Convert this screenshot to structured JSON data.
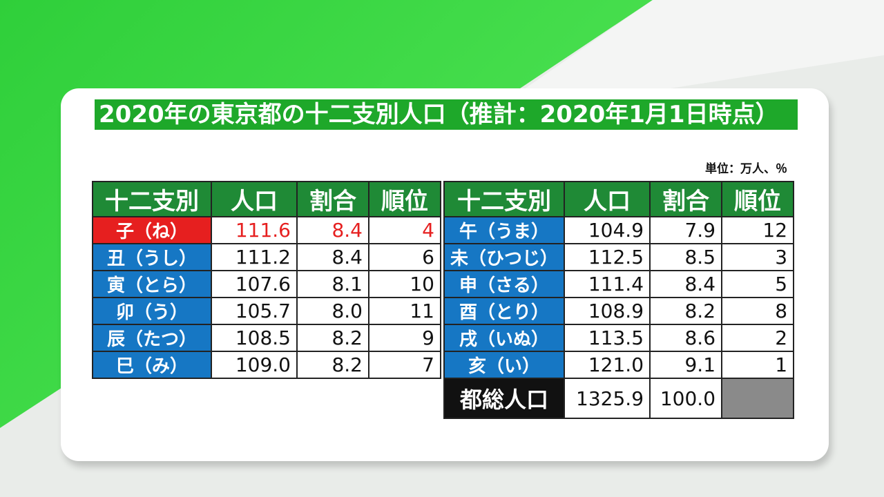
{
  "title": "2020年の東京都の十二支別人口（推計：2020年1月1日時点）",
  "unit": "単位：万人、％",
  "headers": [
    "十二支別",
    "人口",
    "割合",
    "順位"
  ],
  "left_rows": [
    {
      "sign": "子（ね）",
      "pop": "111.6",
      "pct": "8.4",
      "rank": "4"
    },
    {
      "sign": "丑（うし）",
      "pop": "111.2",
      "pct": "8.4",
      "rank": "6"
    },
    {
      "sign": "寅（とら）",
      "pop": "107.6",
      "pct": "8.1",
      "rank": "10"
    },
    {
      "sign": "卯（う）",
      "pop": "105.7",
      "pct": "8.0",
      "rank": "11"
    },
    {
      "sign": "辰（たつ）",
      "pop": "108.5",
      "pct": "8.2",
      "rank": "9"
    },
    {
      "sign": "巳（み）",
      "pop": "109.0",
      "pct": "8.2",
      "rank": "7"
    }
  ],
  "right_rows": [
    {
      "sign": "午（うま）",
      "pop": "104.9",
      "pct": "7.9",
      "rank": "12"
    },
    {
      "sign": "未（ひつじ）",
      "pop": "112.5",
      "pct": "8.5",
      "rank": "3"
    },
    {
      "sign": "申（さる）",
      "pop": "111.4",
      "pct": "8.4",
      "rank": "5"
    },
    {
      "sign": "酉（とり）",
      "pop": "108.9",
      "pct": "8.2",
      "rank": "8"
    },
    {
      "sign": "戌（いぬ）",
      "pop": "113.5",
      "pct": "8.6",
      "rank": "2"
    },
    {
      "sign": "亥（い）",
      "pop": "121.0",
      "pct": "9.1",
      "rank": "1"
    }
  ],
  "total": {
    "label": "都総人口",
    "pop": "1325.9",
    "pct": "100.0"
  },
  "colors": {
    "header_green": "#1f8a36",
    "sign_blue": "#1677c4",
    "highlight_red": "#e61f1f",
    "title_green": "#1ea82a"
  }
}
